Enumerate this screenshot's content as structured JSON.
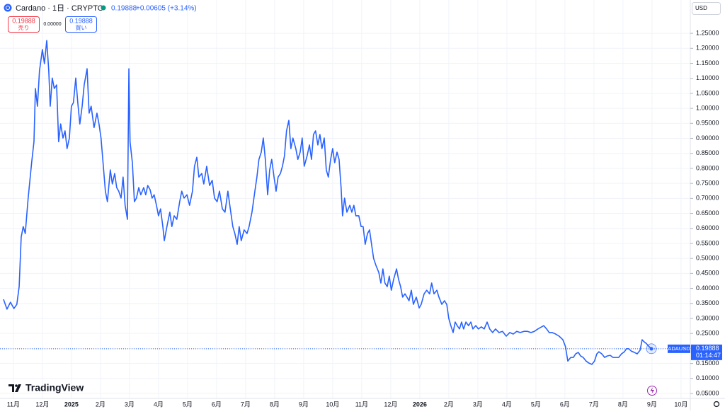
{
  "header": {
    "symbol": "Cardano · 1日 · CRYPTO",
    "price": "0.19888",
    "change": "+0.00605 (+3.14%)",
    "sell_price": "0.19888",
    "sell_label": "売り",
    "spread": "0.00000",
    "buy_price": "0.19888",
    "buy_label": "買い",
    "currency": "USD",
    "brand": "TradingView"
  },
  "chart_data": {
    "type": "line",
    "x": [
      0.66,
      0.78,
      0.9,
      1.02,
      1.12,
      1.2,
      1.27,
      1.34,
      1.41,
      1.51,
      1.63,
      1.71,
      1.76,
      1.83,
      1.9,
      2.0,
      2.07,
      2.15,
      2.22,
      2.27,
      2.34,
      2.41,
      2.49,
      2.56,
      2.63,
      2.71,
      2.78,
      2.85,
      2.93,
      3.0,
      3.07,
      3.15,
      3.22,
      3.29,
      3.37,
      3.44,
      3.54,
      3.61,
      3.68,
      3.78,
      3.88,
      3.95,
      4.02,
      4.1,
      4.17,
      4.24,
      4.34,
      4.41,
      4.49,
      4.56,
      4.63,
      4.71,
      4.78,
      4.85,
      4.93,
      4.98,
      5.02,
      5.1,
      5.17,
      5.24,
      5.32,
      5.39,
      5.49,
      5.56,
      5.63,
      5.71,
      5.78,
      5.85,
      5.93,
      6.0,
      6.07,
      6.15,
      6.2,
      6.29,
      6.39,
      6.46,
      6.54,
      6.63,
      6.73,
      6.8,
      6.88,
      6.98,
      7.07,
      7.17,
      7.24,
      7.32,
      7.39,
      7.49,
      7.56,
      7.66,
      7.76,
      7.85,
      7.93,
      8.02,
      8.1,
      8.2,
      8.29,
      8.39,
      8.49,
      8.56,
      8.63,
      8.71,
      8.78,
      8.85,
      8.95,
      9.05,
      9.12,
      9.22,
      9.32,
      9.39,
      9.46,
      9.54,
      9.61,
      9.68,
      9.76,
      9.83,
      9.9,
      9.98,
      10.05,
      10.12,
      10.2,
      10.27,
      10.34,
      10.41,
      10.49,
      10.56,
      10.63,
      10.73,
      10.8,
      10.88,
      10.95,
      11.02,
      11.12,
      11.2,
      11.27,
      11.34,
      11.41,
      11.49,
      11.56,
      11.63,
      11.71,
      11.78,
      11.85,
      11.93,
      12.0,
      12.07,
      12.15,
      12.22,
      12.29,
      12.34,
      12.41,
      12.49,
      12.59,
      12.66,
      12.73,
      12.8,
      12.9,
      12.98,
      13.05,
      13.12,
      13.2,
      13.27,
      13.34,
      13.41,
      13.49,
      13.59,
      13.66,
      13.73,
      13.8,
      13.88,
      13.95,
      14.02,
      14.1,
      14.2,
      14.27,
      14.34,
      14.41,
      14.49,
      14.56,
      14.63,
      14.71,
      14.78,
      14.88,
      14.98,
      15.05,
      15.15,
      15.24,
      15.34,
      15.41,
      15.49,
      15.59,
      15.66,
      15.76,
      15.85,
      15.93,
      16.0,
      16.07,
      16.15,
      16.22,
      16.29,
      16.37,
      16.44,
      16.51,
      16.59,
      16.68,
      16.76,
      16.83,
      16.93,
      17.02,
      17.12,
      17.22,
      17.32,
      17.41,
      17.51,
      17.61,
      17.73,
      17.85,
      17.98,
      18.1,
      18.22,
      18.34,
      18.46,
      18.59,
      18.71,
      18.83,
      18.95,
      19.07,
      19.2,
      19.27,
      19.37,
      19.46,
      19.56,
      19.68,
      19.8,
      19.93,
      20.02,
      20.1,
      20.2,
      20.29,
      20.37,
      20.46,
      20.54,
      20.63,
      20.73,
      20.83,
      20.93,
      21.02,
      21.1,
      21.17,
      21.27,
      21.37,
      21.46,
      21.56,
      21.66,
      21.76,
      21.85,
      21.95,
      22.05,
      22.12,
      22.2,
      22.29,
      22.39,
      22.49,
      22.59,
      22.66,
      22.73,
      22.8,
      22.9,
      22.98
    ],
    "series": [
      {
        "name": "ADAUSD",
        "color": "#2962ff",
        "values": [
          0.364,
          0.331,
          0.354,
          0.333,
          0.347,
          0.406,
          0.571,
          0.606,
          0.583,
          0.701,
          0.819,
          0.889,
          1.066,
          1.007,
          1.125,
          1.196,
          1.149,
          1.226,
          1.125,
          1.007,
          1.101,
          1.066,
          1.078,
          0.889,
          0.948,
          0.901,
          0.925,
          0.866,
          0.901,
          1.007,
          1.019,
          1.101,
          1.019,
          0.948,
          1.007,
          1.078,
          1.132,
          0.984,
          1.007,
          0.936,
          0.984,
          0.948,
          0.901,
          0.807,
          0.724,
          0.689,
          0.795,
          0.748,
          0.783,
          0.736,
          0.724,
          0.701,
          0.771,
          0.677,
          0.63,
          1.132,
          0.889,
          0.819,
          0.689,
          0.701,
          0.736,
          0.712,
          0.736,
          0.712,
          0.743,
          0.729,
          0.701,
          0.712,
          0.677,
          0.642,
          0.665,
          0.606,
          0.559,
          0.606,
          0.654,
          0.606,
          0.642,
          0.63,
          0.689,
          0.724,
          0.701,
          0.712,
          0.677,
          0.724,
          0.807,
          0.837,
          0.771,
          0.783,
          0.748,
          0.807,
          0.743,
          0.76,
          0.701,
          0.689,
          0.724,
          0.665,
          0.654,
          0.724,
          0.654,
          0.606,
          0.583,
          0.547,
          0.606,
          0.559,
          0.595,
          0.583,
          0.606,
          0.654,
          0.724,
          0.771,
          0.83,
          0.854,
          0.901,
          0.83,
          0.712,
          0.795,
          0.83,
          0.771,
          0.724,
          0.771,
          0.783,
          0.807,
          0.842,
          0.925,
          0.96,
          0.866,
          0.901,
          0.866,
          0.83,
          0.854,
          0.901,
          0.807,
          0.842,
          0.878,
          0.83,
          0.913,
          0.925,
          0.878,
          0.913,
          0.866,
          0.901,
          0.795,
          0.771,
          0.83,
          0.866,
          0.819,
          0.854,
          0.83,
          0.736,
          0.642,
          0.701,
          0.654,
          0.677,
          0.654,
          0.677,
          0.642,
          0.642,
          0.606,
          0.606,
          0.547,
          0.583,
          0.595,
          0.547,
          0.5,
          0.477,
          0.453,
          0.418,
          0.465,
          0.418,
          0.406,
          0.441,
          0.394,
          0.43,
          0.465,
          0.43,
          0.406,
          0.371,
          0.382,
          0.371,
          0.359,
          0.394,
          0.347,
          0.371,
          0.335,
          0.347,
          0.382,
          0.394,
          0.382,
          0.418,
          0.382,
          0.394,
          0.371,
          0.347,
          0.359,
          0.347,
          0.3,
          0.276,
          0.253,
          0.288,
          0.276,
          0.265,
          0.288,
          0.265,
          0.288,
          0.276,
          0.288,
          0.265,
          0.276,
          0.265,
          0.272,
          0.265,
          0.288,
          0.265,
          0.253,
          0.265,
          0.253,
          0.257,
          0.241,
          0.253,
          0.248,
          0.257,
          0.253,
          0.257,
          0.257,
          0.253,
          0.257,
          0.265,
          0.272,
          0.276,
          0.265,
          0.253,
          0.253,
          0.248,
          0.241,
          0.229,
          0.206,
          0.158,
          0.17,
          0.17,
          0.182,
          0.187,
          0.175,
          0.17,
          0.158,
          0.151,
          0.147,
          0.158,
          0.182,
          0.189,
          0.182,
          0.17,
          0.175,
          0.177,
          0.17,
          0.17,
          0.17,
          0.182,
          0.189,
          0.199,
          0.199,
          0.191,
          0.187,
          0.182,
          0.194,
          0.229,
          0.222,
          0.217,
          0.206,
          0.19888
        ]
      }
    ],
    "price_tag": {
      "symbol": "ADAUSD",
      "countdown": "01:14:47"
    },
    "xlim": [
      0.54,
      24.32
    ],
    "xticks": [
      {
        "value": 1,
        "label": "11月"
      },
      {
        "value": 2,
        "label": "12月"
      },
      {
        "value": 3,
        "label": "2025"
      },
      {
        "value": 4,
        "label": "2月"
      },
      {
        "value": 5,
        "label": "3月"
      },
      {
        "value": 6,
        "label": "4月"
      },
      {
        "value": 7,
        "label": "5月"
      },
      {
        "value": 8,
        "label": "6月"
      },
      {
        "value": 9,
        "label": "7月"
      },
      {
        "value": 10,
        "label": "8月"
      },
      {
        "value": 11,
        "label": "9月"
      },
      {
        "value": 12,
        "label": "10月"
      },
      {
        "value": 13,
        "label": "11月"
      },
      {
        "value": 14,
        "label": "12月"
      },
      {
        "value": 15,
        "label": "2026"
      },
      {
        "value": 16,
        "label": "2月"
      },
      {
        "value": 17,
        "label": "3月"
      },
      {
        "value": 18,
        "label": "4月"
      },
      {
        "value": 19,
        "label": "5月"
      },
      {
        "value": 20,
        "label": "6月"
      },
      {
        "value": 21,
        "label": "7月"
      },
      {
        "value": 22,
        "label": "8月"
      },
      {
        "value": 23,
        "label": "9月"
      },
      {
        "value": 24,
        "label": "10月"
      }
    ],
    "ylim": [
      0.0335,
      1.361
    ],
    "yticks": [
      {
        "value": 0.05,
        "label": "0.05000"
      },
      {
        "value": 0.1,
        "label": "0.10000"
      },
      {
        "value": 0.15,
        "label": "0.15000"
      },
      {
        "value": 0.2,
        "label": "0.20000"
      },
      {
        "value": 0.25,
        "label": "0.25000"
      },
      {
        "value": 0.3,
        "label": "0.30000"
      },
      {
        "value": 0.35,
        "label": "0.35000"
      },
      {
        "value": 0.4,
        "label": "0.40000"
      },
      {
        "value": 0.45,
        "label": "0.45000"
      },
      {
        "value": 0.5,
        "label": "0.50000"
      },
      {
        "value": 0.55,
        "label": "0.55000"
      },
      {
        "value": 0.6,
        "label": "0.60000"
      },
      {
        "value": 0.65,
        "label": "0.65000"
      },
      {
        "value": 0.7,
        "label": "0.70000"
      },
      {
        "value": 0.75,
        "label": "0.75000"
      },
      {
        "value": 0.8,
        "label": "0.80000"
      },
      {
        "value": 0.85,
        "label": "0.85000"
      },
      {
        "value": 0.9,
        "label": "0.90000"
      },
      {
        "value": 0.95,
        "label": "0.95000"
      },
      {
        "value": 1.0,
        "label": "1.00000"
      },
      {
        "value": 1.05,
        "label": "1.05000"
      },
      {
        "value": 1.1,
        "label": "1.10000"
      },
      {
        "value": 1.15,
        "label": "1.15000"
      },
      {
        "value": 1.2,
        "label": "1.20000"
      },
      {
        "value": 1.25,
        "label": "1.25000"
      }
    ],
    "grid": true
  }
}
